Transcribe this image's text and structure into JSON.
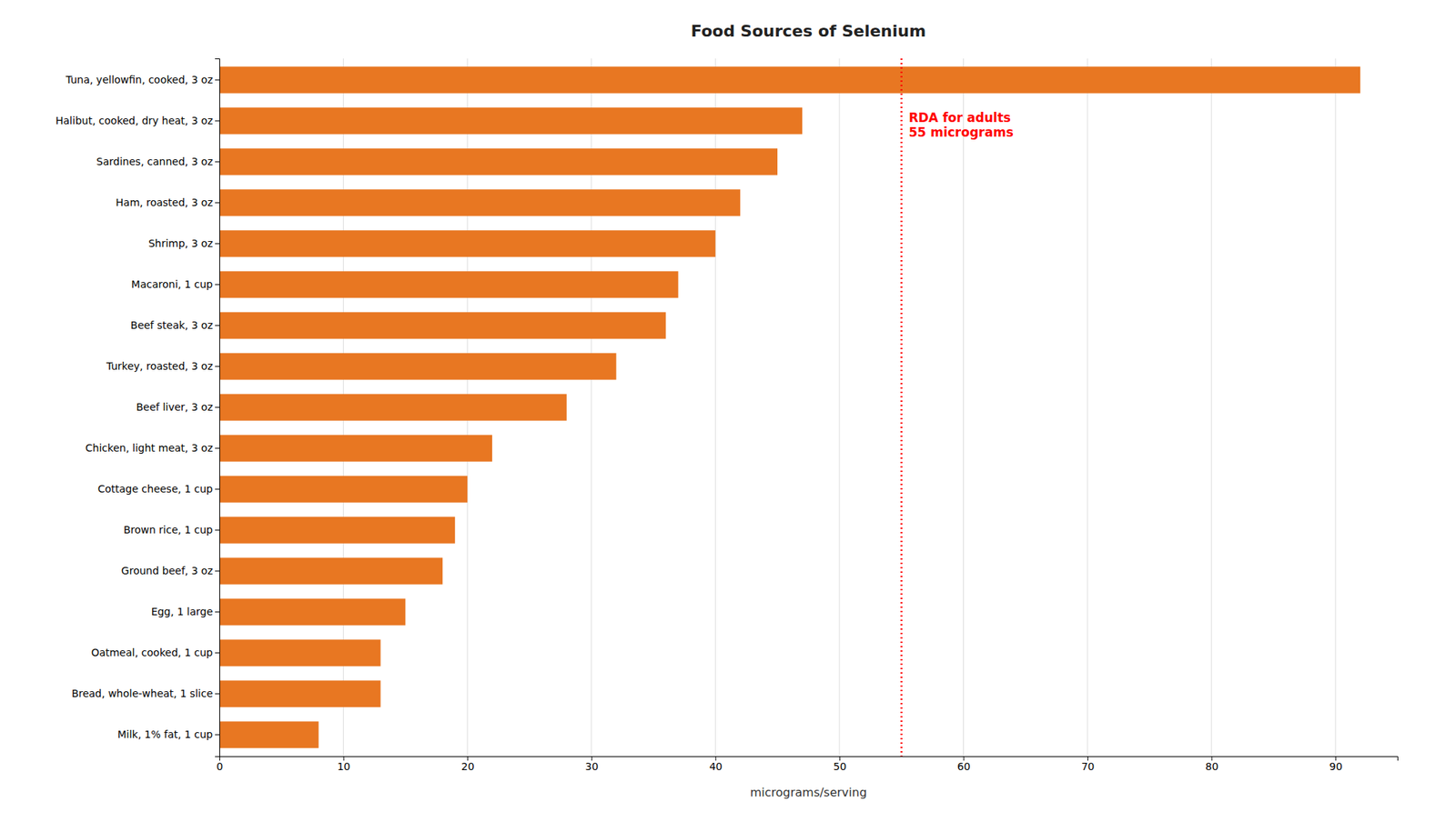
{
  "chart_data": {
    "type": "bar",
    "orientation": "horizontal",
    "title": "Food Sources of Selenium",
    "xlabel": "micrograms/serving",
    "categories": [
      "Tuna, yellowfin, cooked, 3 oz",
      "Halibut, cooked, dry heat, 3 oz",
      "Sardines, canned, 3 oz",
      "Ham, roasted, 3 oz",
      "Shrimp, 3 oz",
      "Macaroni, 1 cup",
      "Beef steak, 3 oz",
      "Turkey, roasted, 3 oz",
      "Beef liver, 3 oz",
      "Chicken, light meat, 3 oz",
      "Cottage cheese, 1 cup",
      "Brown rice, 1 cup",
      "Ground beef, 3 oz",
      "Egg, 1 large",
      "Oatmeal, cooked, 1 cup",
      "Bread, whole-wheat, 1 slice",
      "Milk, 1% fat, 1 cup"
    ],
    "values": [
      92,
      47,
      45,
      42,
      40,
      37,
      36,
      32,
      28,
      22,
      20,
      19,
      18,
      15,
      13,
      13,
      8
    ],
    "color": "#E87722",
    "xlim": [
      0,
      95
    ],
    "xticks": [
      0,
      10,
      20,
      30,
      40,
      50,
      60,
      70,
      80,
      90
    ],
    "grid": true,
    "annotations": [
      {
        "type": "vline",
        "x": 55,
        "label": "RDA for adults\n55 micrograms",
        "color": "#FF0000"
      }
    ]
  }
}
